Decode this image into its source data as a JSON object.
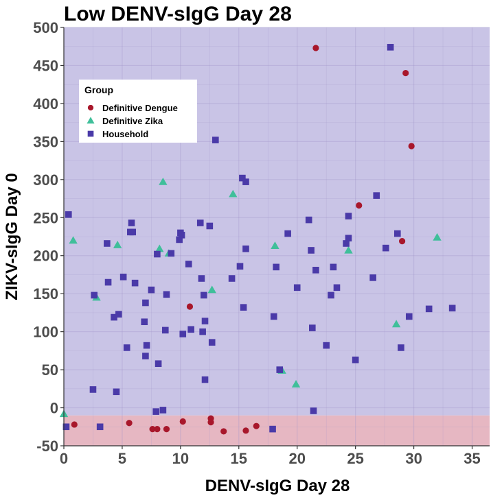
{
  "chart_data": {
    "type": "scatter",
    "title": "Low DENV-sIgG Day 28",
    "xlabel": "DENV-sIgG Day 28",
    "ylabel": "ZIKV-sIgG Day 0",
    "xlim": [
      0,
      36.5
    ],
    "ylim": [
      -50,
      500
    ],
    "xticks": [
      0,
      5,
      10,
      15,
      20,
      25,
      30,
      35
    ],
    "yticks": [
      -50,
      0,
      50,
      100,
      150,
      200,
      250,
      300,
      350,
      400,
      450,
      500
    ],
    "grid": true,
    "background_regions": [
      {
        "y_from": -50,
        "y_to": -10,
        "color": "#e6b7c2"
      },
      {
        "y_from": -10,
        "y_to": 500,
        "color": "#c9c4e6"
      }
    ],
    "legend": {
      "title": "Group",
      "position": "top-left",
      "entries": [
        {
          "label": "Definitive Dengue",
          "shape": "circle",
          "color": "#a8172b"
        },
        {
          "label": "Definitive Zika",
          "shape": "triangle",
          "color": "#3fbf9a"
        },
        {
          "label": "Household",
          "shape": "square",
          "color": "#4a3aa8"
        }
      ]
    },
    "series": [
      {
        "name": "Definitive Dengue",
        "shape": "circle",
        "color": "#a8172b",
        "points": [
          [
            21.6,
            473
          ],
          [
            29.3,
            440
          ],
          [
            29.8,
            344
          ],
          [
            25.3,
            266
          ],
          [
            29.0,
            219
          ],
          [
            10.8,
            133
          ],
          [
            0.9,
            -22
          ],
          [
            5.6,
            -20
          ],
          [
            7.6,
            -28
          ],
          [
            8.0,
            -28
          ],
          [
            8.8,
            -28
          ],
          [
            10.2,
            -18
          ],
          [
            12.6,
            -14
          ],
          [
            12.6,
            -19
          ],
          [
            13.7,
            -31
          ],
          [
            15.6,
            -30
          ],
          [
            16.5,
            -24
          ]
        ]
      },
      {
        "name": "Definitive Zika",
        "shape": "triangle",
        "color": "#3fbf9a",
        "points": [
          [
            0.8,
            220
          ],
          [
            2.8,
            145
          ],
          [
            4.6,
            214
          ],
          [
            8.2,
            209
          ],
          [
            8.5,
            297
          ],
          [
            9.0,
            203
          ],
          [
            12.7,
            155
          ],
          [
            14.5,
            281
          ],
          [
            18.1,
            213
          ],
          [
            18.7,
            49
          ],
          [
            19.9,
            31
          ],
          [
            24.4,
            207
          ],
          [
            28.5,
            110
          ],
          [
            32.0,
            224
          ],
          [
            0.0,
            -8
          ]
        ]
      },
      {
        "name": "Household",
        "shape": "square",
        "color": "#4a3aa8",
        "points": [
          [
            0.2,
            -25
          ],
          [
            0.4,
            254
          ],
          [
            2.5,
            24
          ],
          [
            2.6,
            148
          ],
          [
            3.1,
            -25
          ],
          [
            3.7,
            216
          ],
          [
            3.8,
            165
          ],
          [
            4.3,
            119
          ],
          [
            4.5,
            21
          ],
          [
            4.7,
            123
          ],
          [
            5.1,
            172
          ],
          [
            5.4,
            79
          ],
          [
            5.7,
            231
          ],
          [
            5.8,
            243
          ],
          [
            5.9,
            231
          ],
          [
            6.1,
            164
          ],
          [
            6.9,
            113
          ],
          [
            7.0,
            138
          ],
          [
            7.0,
            68
          ],
          [
            7.1,
            82
          ],
          [
            7.5,
            155
          ],
          [
            7.9,
            -5
          ],
          [
            8.0,
            202
          ],
          [
            8.1,
            58
          ],
          [
            8.5,
            -3
          ],
          [
            8.7,
            102
          ],
          [
            8.8,
            149
          ],
          [
            9.2,
            203
          ],
          [
            9.9,
            221
          ],
          [
            10.0,
            230
          ],
          [
            10.1,
            227
          ],
          [
            10.2,
            97
          ],
          [
            10.7,
            189
          ],
          [
            10.9,
            103
          ],
          [
            11.7,
            243
          ],
          [
            11.8,
            170
          ],
          [
            11.9,
            100
          ],
          [
            12.0,
            148
          ],
          [
            12.1,
            114
          ],
          [
            12.1,
            37
          ],
          [
            12.5,
            239
          ],
          [
            12.7,
            86
          ],
          [
            13.0,
            352
          ],
          [
            14.4,
            170
          ],
          [
            15.1,
            186
          ],
          [
            15.3,
            302
          ],
          [
            15.4,
            132
          ],
          [
            15.6,
            297
          ],
          [
            15.6,
            209
          ],
          [
            17.9,
            -28
          ],
          [
            18.0,
            120
          ],
          [
            18.2,
            185
          ],
          [
            18.5,
            50
          ],
          [
            19.2,
            229
          ],
          [
            20.0,
            158
          ],
          [
            21.0,
            247
          ],
          [
            21.2,
            207
          ],
          [
            21.3,
            105
          ],
          [
            21.4,
            -4
          ],
          [
            21.6,
            181
          ],
          [
            22.5,
            82
          ],
          [
            22.9,
            148
          ],
          [
            23.1,
            185
          ],
          [
            23.4,
            158
          ],
          [
            24.2,
            216
          ],
          [
            24.4,
            252
          ],
          [
            24.4,
            223
          ],
          [
            25.0,
            63
          ],
          [
            26.5,
            171
          ],
          [
            26.8,
            279
          ],
          [
            27.6,
            210
          ],
          [
            28.0,
            474
          ],
          [
            28.6,
            229
          ],
          [
            28.9,
            79
          ],
          [
            29.6,
            120
          ],
          [
            31.3,
            130
          ],
          [
            33.3,
            131
          ]
        ]
      }
    ]
  }
}
